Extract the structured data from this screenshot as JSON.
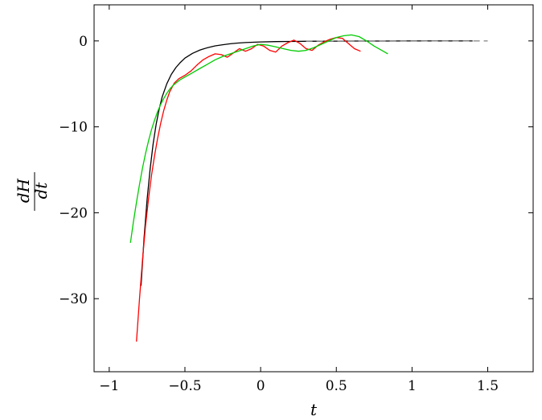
{
  "chart_data": {
    "type": "line",
    "title": "",
    "xlabel": "t",
    "ylabel": {
      "numerator": "dH",
      "denominator": "dt"
    },
    "xlim": [
      -1.1,
      1.8
    ],
    "ylim": [
      -38.5,
      4.2
    ],
    "xticks": [
      {
        "value": -1,
        "label": "−1"
      },
      {
        "value": -0.5,
        "label": "−0.5"
      },
      {
        "value": 0,
        "label": "0"
      },
      {
        "value": 0.5,
        "label": "0.5"
      },
      {
        "value": 1,
        "label": "1"
      },
      {
        "value": 1.5,
        "label": "1.5"
      }
    ],
    "yticks": [
      {
        "value": 0,
        "label": "0"
      },
      {
        "value": -10,
        "label": "−10"
      },
      {
        "value": -20,
        "label": "−20"
      },
      {
        "value": -30,
        "label": "−30"
      }
    ],
    "grid": false,
    "legend": "none",
    "series": [
      {
        "color": "#000000",
        "dash": "solid",
        "x": [
          -0.79,
          -0.77,
          -0.75,
          -0.73,
          -0.71,
          -0.69,
          -0.67,
          -0.65,
          -0.62,
          -0.59,
          -0.56,
          -0.53,
          -0.5,
          -0.45,
          -0.4,
          -0.35,
          -0.3,
          -0.25,
          -0.2,
          -0.15,
          -0.1,
          -0.05,
          0,
          0.1,
          0.2,
          0.3,
          0.4,
          0.5,
          0.6,
          0.8,
          1.0,
          1.2,
          1.4
        ],
        "y": [
          -28.5,
          -23.0,
          -18.5,
          -14.9,
          -12.0,
          -9.7,
          -7.9,
          -6.5,
          -5.0,
          -3.9,
          -3.1,
          -2.5,
          -2.0,
          -1.45,
          -1.05,
          -0.78,
          -0.58,
          -0.44,
          -0.33,
          -0.25,
          -0.19,
          -0.15,
          -0.12,
          -0.08,
          -0.06,
          -0.04,
          -0.03,
          -0.02,
          -0.015,
          -0.01,
          -0.005,
          0,
          0
        ]
      },
      {
        "color": "#808080",
        "dash": "dashed",
        "x": [
          0.3,
          0.5,
          0.7,
          0.9,
          1.1,
          1.3,
          1.5
        ],
        "y": [
          -0.04,
          -0.02,
          -0.015,
          -0.01,
          -0.005,
          -0.003,
          0
        ]
      },
      {
        "color": "#ff0000",
        "dash": "solid",
        "x": [
          -0.82,
          -0.8,
          -0.78,
          -0.76,
          -0.74,
          -0.72,
          -0.7,
          -0.68,
          -0.66,
          -0.64,
          -0.62,
          -0.6,
          -0.57,
          -0.54,
          -0.5,
          -0.46,
          -0.42,
          -0.38,
          -0.34,
          -0.3,
          -0.26,
          -0.22,
          -0.18,
          -0.14,
          -0.1,
          -0.06,
          -0.02,
          0.02,
          0.06,
          0.1,
          0.14,
          0.18,
          0.22,
          0.26,
          0.3,
          0.34,
          0.38,
          0.42,
          0.46,
          0.5,
          0.54,
          0.58,
          0.62,
          0.66
        ],
        "y": [
          -35.0,
          -30.0,
          -25.5,
          -21.5,
          -18.3,
          -15.6,
          -13.3,
          -11.3,
          -9.6,
          -8.1,
          -6.9,
          -5.9,
          -4.9,
          -4.4,
          -4.0,
          -3.5,
          -2.8,
          -2.2,
          -1.8,
          -1.5,
          -1.6,
          -1.9,
          -1.4,
          -0.9,
          -1.2,
          -0.9,
          -0.4,
          -0.6,
          -1.1,
          -1.3,
          -0.6,
          -0.2,
          0.1,
          -0.3,
          -0.9,
          -1.1,
          -0.5,
          -0.1,
          0.2,
          0.4,
          0.3,
          -0.3,
          -0.9,
          -1.2
        ]
      },
      {
        "color": "#00cc00",
        "dash": "solid",
        "x": [
          -0.86,
          -0.84,
          -0.82,
          -0.8,
          -0.78,
          -0.76,
          -0.74,
          -0.72,
          -0.7,
          -0.68,
          -0.66,
          -0.64,
          -0.62,
          -0.6,
          -0.58,
          -0.56,
          -0.53,
          -0.5,
          -0.45,
          -0.4,
          -0.35,
          -0.3,
          -0.25,
          -0.2,
          -0.15,
          -0.1,
          -0.05,
          0,
          0.05,
          0.1,
          0.15,
          0.2,
          0.25,
          0.3,
          0.35,
          0.4,
          0.45,
          0.5,
          0.55,
          0.6,
          0.65,
          0.7,
          0.75,
          0.8,
          0.84
        ],
        "y": [
          -23.5,
          -21.0,
          -18.8,
          -16.7,
          -14.8,
          -13.1,
          -11.6,
          -10.3,
          -9.2,
          -8.2,
          -7.4,
          -6.7,
          -6.1,
          -5.6,
          -5.2,
          -4.9,
          -4.5,
          -4.2,
          -3.7,
          -3.2,
          -2.7,
          -2.2,
          -1.8,
          -1.5,
          -1.2,
          -0.9,
          -0.6,
          -0.4,
          -0.5,
          -0.7,
          -0.9,
          -1.1,
          -1.2,
          -1.1,
          -0.8,
          -0.4,
          0.0,
          0.4,
          0.6,
          0.7,
          0.5,
          0.0,
          -0.6,
          -1.1,
          -1.5
        ]
      }
    ]
  }
}
